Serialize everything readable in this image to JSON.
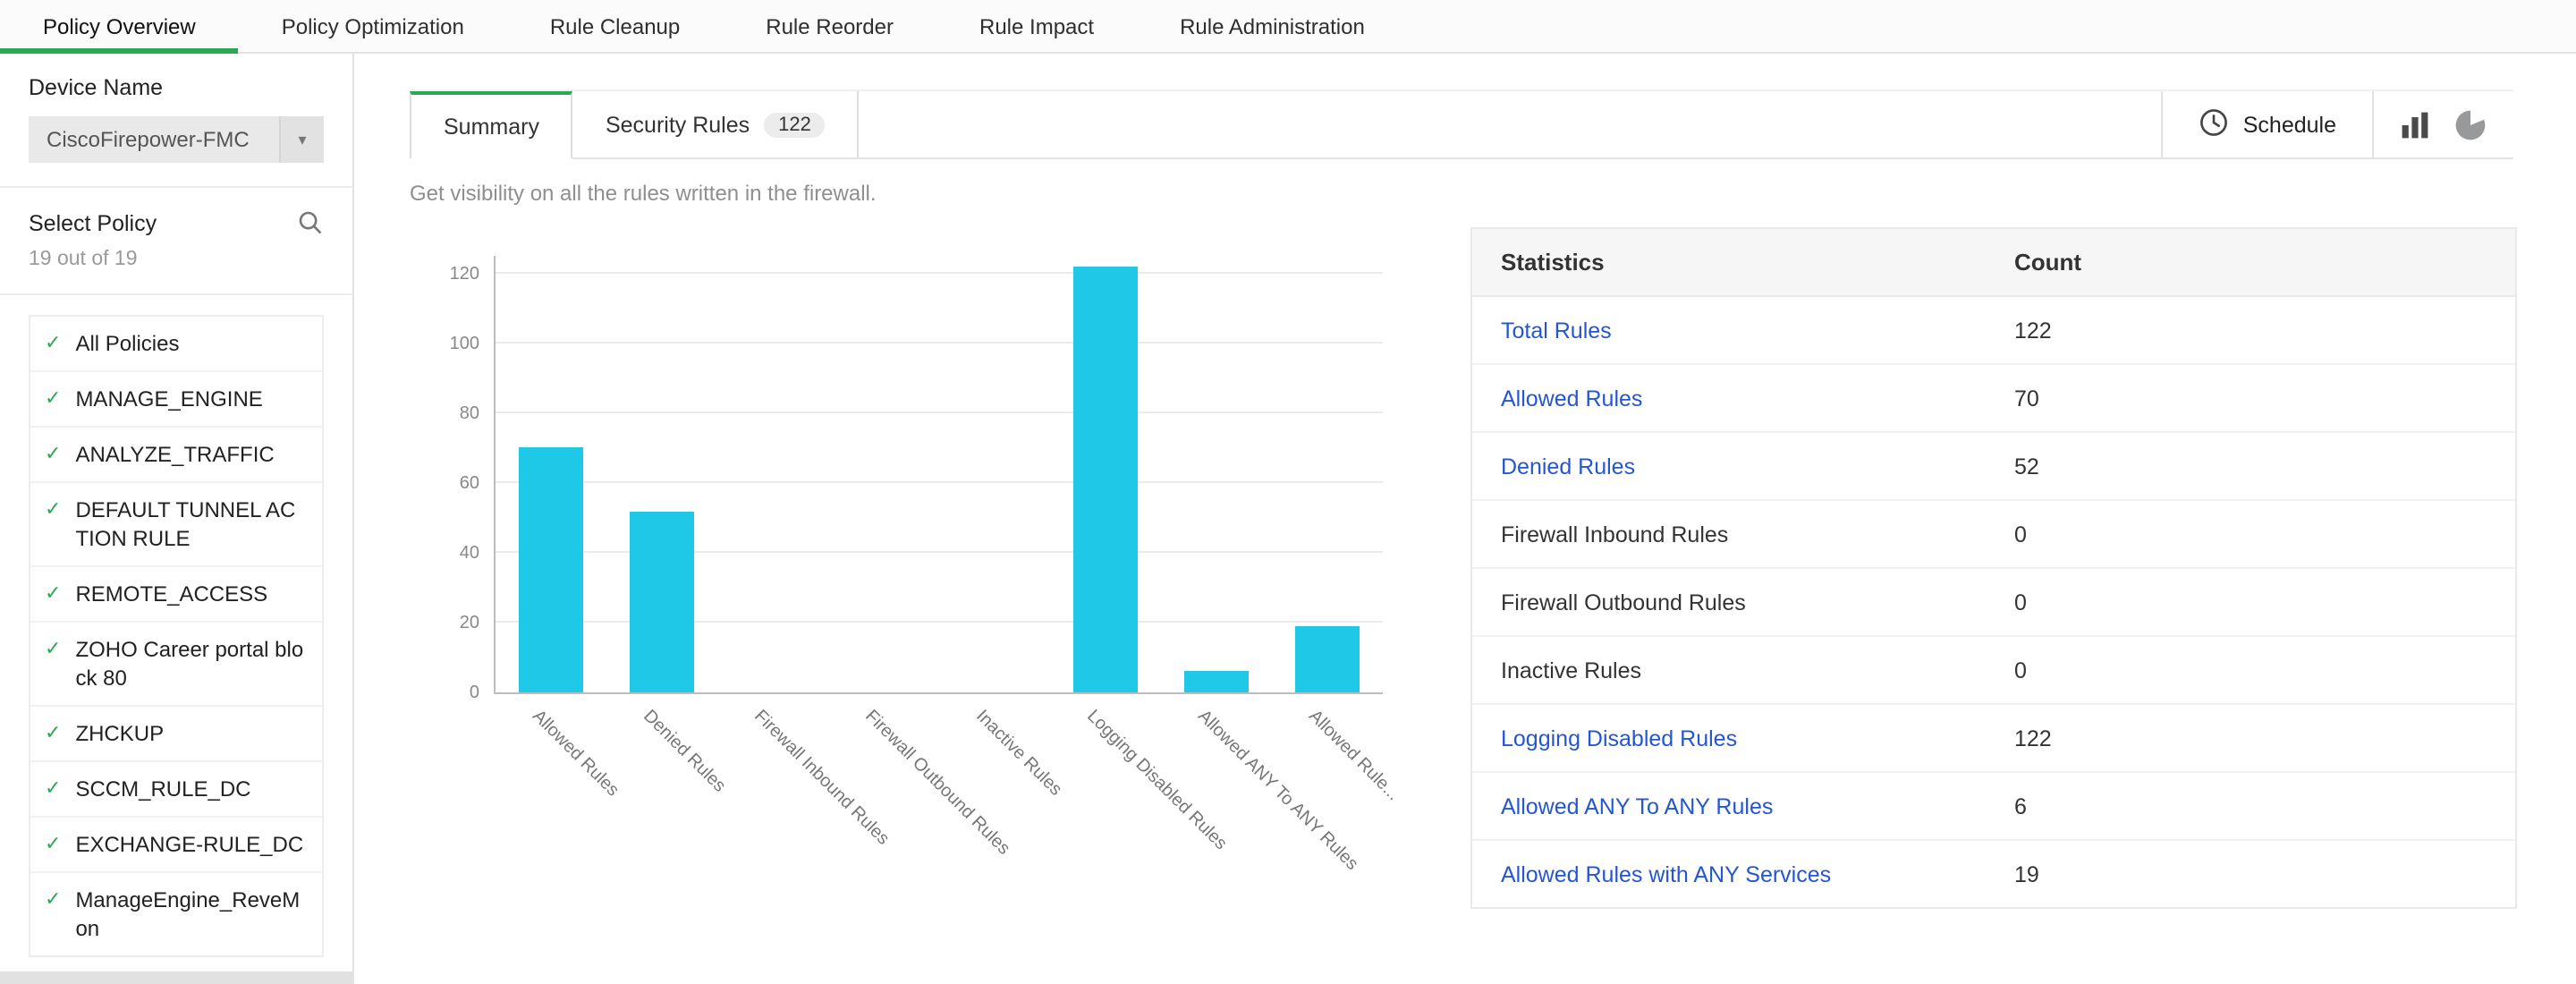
{
  "nav": {
    "tabs": [
      {
        "label": "Policy Overview",
        "active": true
      },
      {
        "label": "Policy Optimization",
        "active": false
      },
      {
        "label": "Rule Cleanup",
        "active": false
      },
      {
        "label": "Rule Reorder",
        "active": false
      },
      {
        "label": "Rule Impact",
        "active": false
      },
      {
        "label": "Rule Administration",
        "active": false
      }
    ]
  },
  "sidebar": {
    "device_name_label": "Device Name",
    "device_selected": "CiscoFirepower-FMC",
    "select_policy_label": "Select Policy",
    "policy_count": "19 out of 19",
    "policies": [
      "All Policies",
      "MANAGE_ENGINE",
      "ANALYZE_TRAFFIC",
      "DEFAULT TUNNEL ACTION RULE",
      "REMOTE_ACCESS",
      "ZOHO Career portal block 80",
      "ZHCKUP",
      "SCCM_RULE_DC",
      "EXCHANGE-RULE_DC",
      "ManageEngine_ReveMon"
    ]
  },
  "main": {
    "tabs": [
      {
        "label": "Summary",
        "active": true
      },
      {
        "label": "Security Rules",
        "badge": "122",
        "active": false
      }
    ],
    "schedule_label": "Schedule",
    "description": "Get visibility on all the rules written in the firewall."
  },
  "chart_data": {
    "type": "bar",
    "title": "",
    "xlabel": "",
    "ylabel": "",
    "categories": [
      "Allowed Rules",
      "Denied Rules",
      "Firewall Inbound Rules",
      "Firewall Outbound Rules",
      "Inactive Rules",
      "Logging Disabled Rules",
      "Allowed ANY To ANY Rules",
      "Allowed Rule..."
    ],
    "values": [
      70,
      52,
      0,
      0,
      0,
      122,
      6,
      19
    ],
    "ylim": [
      0,
      120
    ],
    "yticks": [
      0,
      20,
      40,
      60,
      80,
      100,
      120
    ],
    "grid": true,
    "legend": "none",
    "bar_color": "#1fc8e6"
  },
  "table": {
    "headers": [
      "Statistics",
      "Count"
    ],
    "rows": [
      {
        "label": "Total Rules",
        "count": "122",
        "link": true
      },
      {
        "label": "Allowed Rules",
        "count": "70",
        "link": true
      },
      {
        "label": "Denied Rules",
        "count": "52",
        "link": true
      },
      {
        "label": "Firewall Inbound Rules",
        "count": "0",
        "link": false
      },
      {
        "label": "Firewall Outbound Rules",
        "count": "0",
        "link": false
      },
      {
        "label": "Inactive Rules",
        "count": "0",
        "link": false
      },
      {
        "label": "Logging Disabled Rules",
        "count": "122",
        "link": true
      },
      {
        "label": "Allowed ANY To ANY Rules",
        "count": "6",
        "link": true
      },
      {
        "label": "Allowed Rules with ANY Services",
        "count": "19",
        "link": true
      }
    ]
  },
  "colors": {
    "accent_green": "#2aa952",
    "bar_cyan": "#1fc8e6",
    "link_blue": "#2456d3"
  }
}
